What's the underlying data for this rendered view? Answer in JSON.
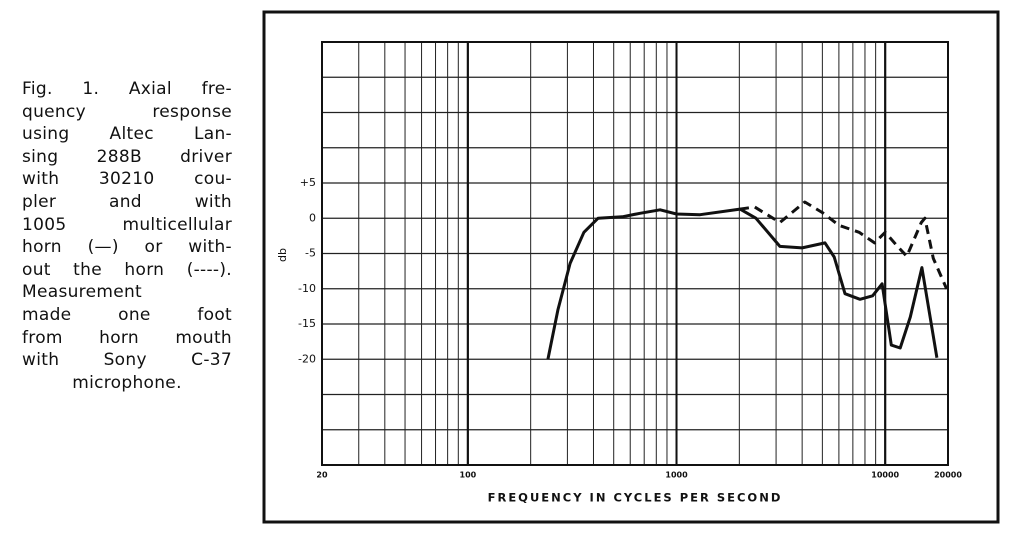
{
  "caption_lines": [
    "Fig. 1. Axial fre-",
    "quency response",
    "using Altec Lan-",
    "sing 288B driver",
    "with 30210 cou-",
    "pler and with",
    "1005 multicellular",
    "horn (—) or with-",
    "out the horn (----).",
    "Measurement",
    "made one foot",
    "from horn mouth",
    "with Sony C-37",
    "microphone."
  ],
  "chart_data": {
    "type": "line",
    "xlabel": "FREQUENCY IN CYCLES PER SECOND",
    "ylabel": "db",
    "xscale": "log",
    "xlim": [
      20,
      20000
    ],
    "xticks": [
      20,
      100,
      1000,
      10000,
      20000
    ],
    "ylim": [
      -35,
      25
    ],
    "yticks": [
      {
        "value": 5,
        "label": "+5"
      },
      0,
      -5,
      -10,
      -15,
      -20
    ],
    "ygrid": [
      -35,
      -30,
      -25,
      -20,
      -15,
      -10,
      -5,
      0,
      5,
      10,
      15,
      20,
      25
    ],
    "grid": true,
    "series": [
      {
        "style": "solid",
        "color": "#111111",
        "x": [
          242,
          270,
          309,
          360,
          421,
          550,
          668,
          834,
          1000,
          1297,
          2015,
          2400,
          3130,
          4000,
          5150,
          5700,
          6420,
          7570,
          8700,
          9660,
          10700,
          11800,
          13200,
          15000,
          17700
        ],
        "values": [
          -20,
          -13,
          -6.4,
          -2,
          0,
          0.2,
          0.7,
          1.2,
          0.6,
          0.5,
          1.3,
          0,
          -4,
          -4.2,
          -3.5,
          -5.5,
          -10.7,
          -11.5,
          -11,
          -9.3,
          -18,
          -18.4,
          -14,
          -7,
          -19.8
        ]
      },
      {
        "style": "dashed",
        "color": "#111111",
        "x": [
          2015,
          2370,
          3130,
          4120,
          5000,
          6000,
          7500,
          8900,
          10000,
          11300,
          12700,
          14900,
          15500,
          17000,
          19700
        ],
        "values": [
          1.3,
          1.6,
          -0.6,
          2.3,
          0.8,
          -1,
          -2,
          -3.5,
          -2,
          -3.8,
          -5.4,
          -0.6,
          0,
          -5.7,
          -10
        ]
      }
    ]
  }
}
